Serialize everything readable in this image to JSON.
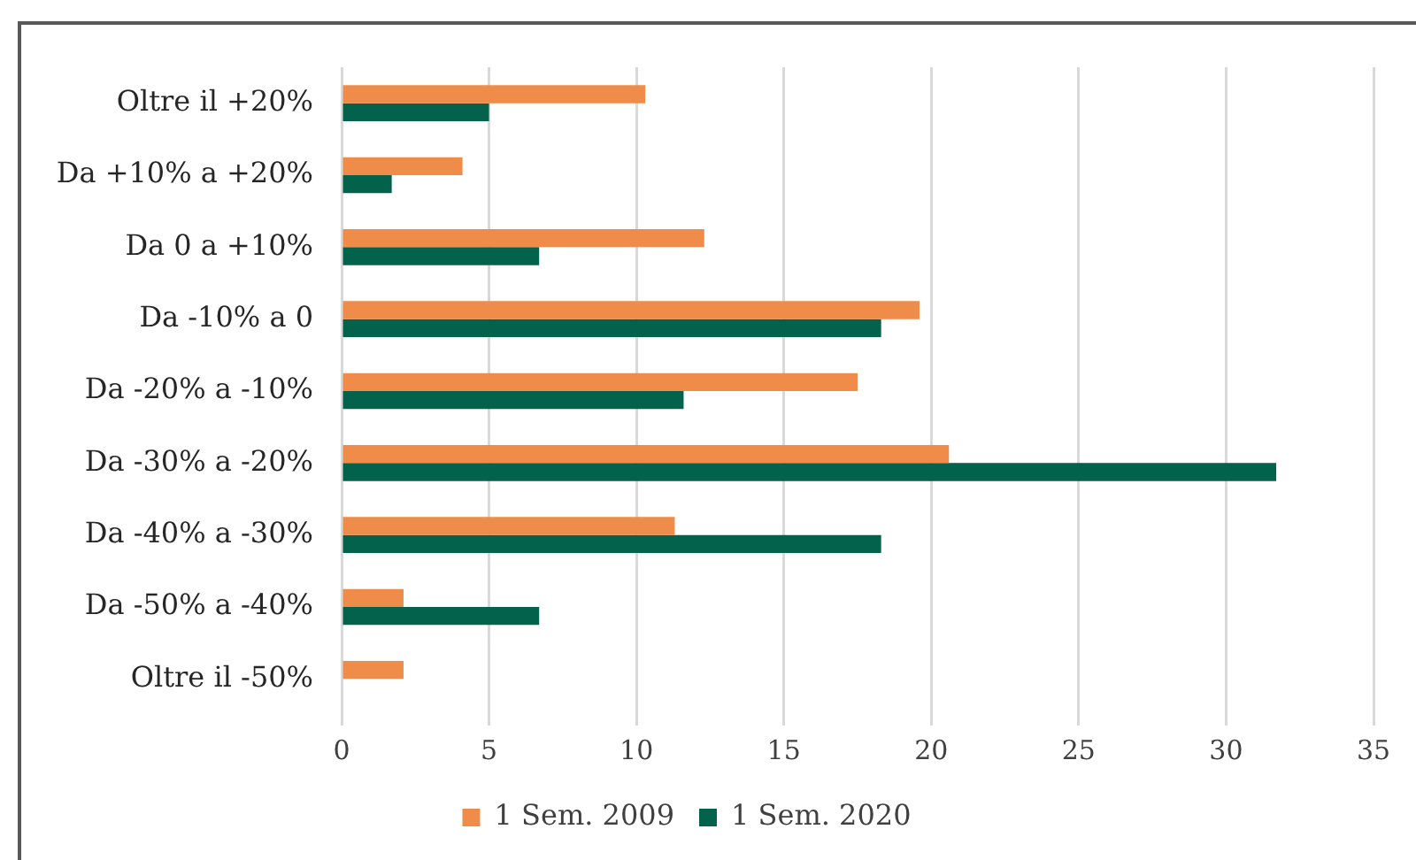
{
  "chart_data": {
    "type": "bar",
    "orientation": "horizontal",
    "categories": [
      "Oltre il +20%",
      "Da +10% a +20%",
      "Da 0 a +10%",
      "Da -10% a 0",
      "Da -20% a -10%",
      "Da -30% a -20%",
      "Da -40% a -30%",
      "Da -50% a -40%",
      "Oltre il -50%"
    ],
    "series": [
      {
        "name": "1 Sem. 2009",
        "color": "#ef8c4a",
        "values": [
          10.3,
          4.1,
          12.3,
          19.6,
          17.5,
          20.6,
          11.3,
          2.1,
          2.1
        ]
      },
      {
        "name": "1 Sem. 2020",
        "color": "#02624b",
        "values": [
          5.0,
          1.7,
          6.7,
          18.3,
          11.6,
          31.7,
          18.3,
          6.7,
          0
        ]
      }
    ],
    "xlim": [
      0,
      35
    ],
    "xticks": [
      0,
      5,
      10,
      15,
      20,
      25,
      30,
      35
    ],
    "grid": "x",
    "legend": "bottom"
  }
}
